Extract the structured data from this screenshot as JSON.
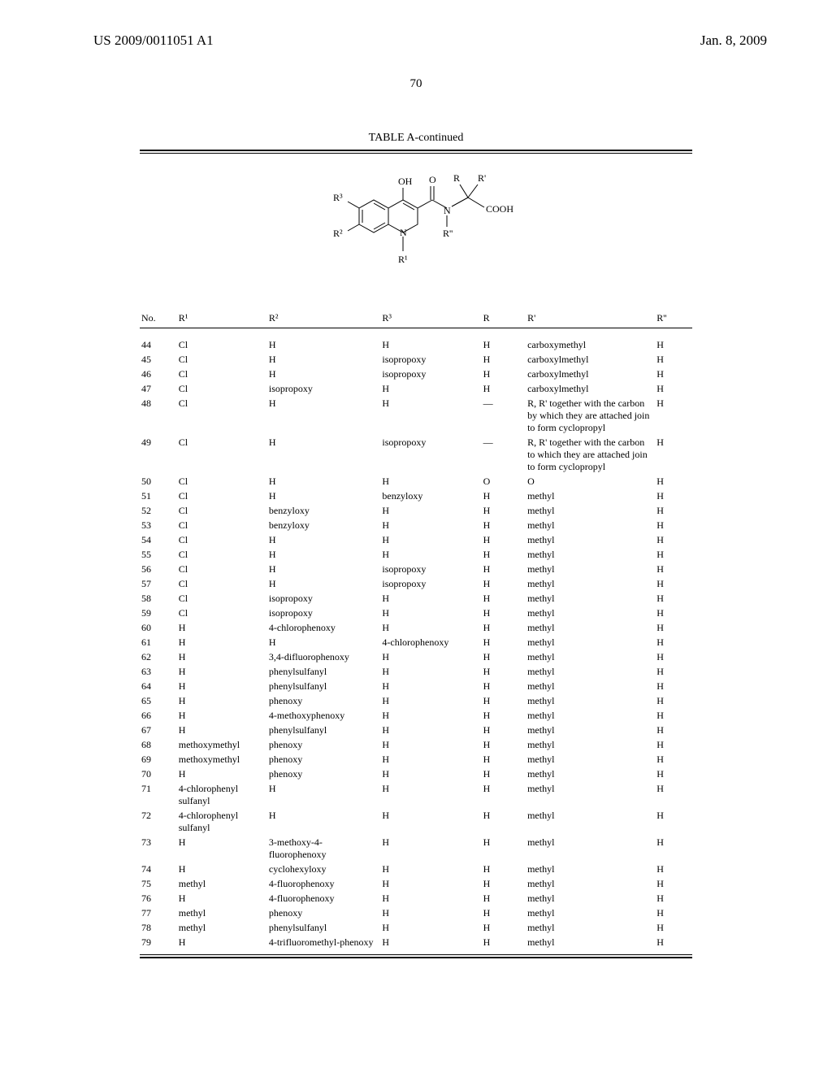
{
  "header": {
    "doc_id": "US 2009/0011051 A1",
    "date": "Jan. 8, 2009",
    "page_number": "70"
  },
  "table": {
    "title": "TABLE A-continued",
    "columns": {
      "no": "No.",
      "r1": "R¹",
      "r2": "R²",
      "r3": "R³",
      "r": "R",
      "rprime": "R'",
      "rpp": "R''"
    },
    "rows": [
      {
        "no": "44",
        "r1": "Cl",
        "r2": "H",
        "r3": "H",
        "r": "H",
        "rp": "carboxymethyl",
        "rpp": "H"
      },
      {
        "no": "45",
        "r1": "Cl",
        "r2": "H",
        "r3": "isopropoxy",
        "r": "H",
        "rp": "carboxylmethyl",
        "rpp": "H"
      },
      {
        "no": "46",
        "r1": "Cl",
        "r2": "H",
        "r3": "isopropoxy",
        "r": "H",
        "rp": "carboxylmethyl",
        "rpp": "H"
      },
      {
        "no": "47",
        "r1": "Cl",
        "r2": "isopropoxy",
        "r3": "H",
        "r": "H",
        "rp": "carboxylmethyl",
        "rpp": "H"
      },
      {
        "no": "48",
        "r1": "Cl",
        "r2": "H",
        "r3": "H",
        "r": "—",
        "rp": "R, R' together with the carbon by which they are attached join to form cyclopropyl",
        "rpp": "H"
      },
      {
        "no": "49",
        "r1": "Cl",
        "r2": "H",
        "r3": "isopropoxy",
        "r": "—",
        "rp": "R, R' together with the carbon to which they are attached join to form cyclopropyl",
        "rpp": "H"
      },
      {
        "no": "50",
        "r1": "Cl",
        "r2": "H",
        "r3": "H",
        "r": "O",
        "rp": "O",
        "rpp": "H"
      },
      {
        "no": "51",
        "r1": "Cl",
        "r2": "H",
        "r3": "benzyloxy",
        "r": "H",
        "rp": "methyl",
        "rpp": "H"
      },
      {
        "no": "52",
        "r1": "Cl",
        "r2": "benzyloxy",
        "r3": "H",
        "r": "H",
        "rp": "methyl",
        "rpp": "H"
      },
      {
        "no": "53",
        "r1": "Cl",
        "r2": "benzyloxy",
        "r3": "H",
        "r": "H",
        "rp": "methyl",
        "rpp": "H"
      },
      {
        "no": "54",
        "r1": "Cl",
        "r2": "H",
        "r3": "H",
        "r": "H",
        "rp": "methyl",
        "rpp": "H"
      },
      {
        "no": "55",
        "r1": "Cl",
        "r2": "H",
        "r3": "H",
        "r": "H",
        "rp": "methyl",
        "rpp": "H"
      },
      {
        "no": "56",
        "r1": "Cl",
        "r2": "H",
        "r3": "isopropoxy",
        "r": "H",
        "rp": "methyl",
        "rpp": "H"
      },
      {
        "no": "57",
        "r1": "Cl",
        "r2": "H",
        "r3": "isopropoxy",
        "r": "H",
        "rp": "methyl",
        "rpp": "H"
      },
      {
        "no": "58",
        "r1": "Cl",
        "r2": "isopropoxy",
        "r3": "H",
        "r": "H",
        "rp": "methyl",
        "rpp": "H"
      },
      {
        "no": "59",
        "r1": "Cl",
        "r2": "isopropoxy",
        "r3": "H",
        "r": "H",
        "rp": "methyl",
        "rpp": "H"
      },
      {
        "no": "60",
        "r1": "H",
        "r2": "4-chlorophenoxy",
        "r3": "H",
        "r": "H",
        "rp": "methyl",
        "rpp": "H"
      },
      {
        "no": "61",
        "r1": "H",
        "r2": "H",
        "r3": "4-chlorophenoxy",
        "r": "H",
        "rp": "methyl",
        "rpp": "H"
      },
      {
        "no": "62",
        "r1": "H",
        "r2": "3,4-difluorophenoxy",
        "r3": "H",
        "r": "H",
        "rp": "methyl",
        "rpp": "H"
      },
      {
        "no": "63",
        "r1": "H",
        "r2": "phenylsulfanyl",
        "r3": "H",
        "r": "H",
        "rp": "methyl",
        "rpp": "H"
      },
      {
        "no": "64",
        "r1": "H",
        "r2": "phenylsulfanyl",
        "r3": "H",
        "r": "H",
        "rp": "methyl",
        "rpp": "H"
      },
      {
        "no": "65",
        "r1": "H",
        "r2": "phenoxy",
        "r3": "H",
        "r": "H",
        "rp": "methyl",
        "rpp": "H"
      },
      {
        "no": "66",
        "r1": "H",
        "r2": "4-methoxyphenoxy",
        "r3": "H",
        "r": "H",
        "rp": "methyl",
        "rpp": "H"
      },
      {
        "no": "67",
        "r1": "H",
        "r2": "phenylsulfanyl",
        "r3": "H",
        "r": "H",
        "rp": "methyl",
        "rpp": "H"
      },
      {
        "no": "68",
        "r1": "methoxymethyl",
        "r2": "phenoxy",
        "r3": "H",
        "r": "H",
        "rp": "methyl",
        "rpp": "H"
      },
      {
        "no": "69",
        "r1": "methoxymethyl",
        "r2": "phenoxy",
        "r3": "H",
        "r": "H",
        "rp": "methyl",
        "rpp": "H"
      },
      {
        "no": "70",
        "r1": "H",
        "r2": "phenoxy",
        "r3": "H",
        "r": "H",
        "rp": "methyl",
        "rpp": "H"
      },
      {
        "no": "71",
        "r1": "4-chlorophenyl sulfanyl",
        "r2": "H",
        "r3": "H",
        "r": "H",
        "rp": "methyl",
        "rpp": "H"
      },
      {
        "no": "72",
        "r1": "4-chlorophenyl sulfanyl",
        "r2": "H",
        "r3": "H",
        "r": "H",
        "rp": "methyl",
        "rpp": "H"
      },
      {
        "no": "73",
        "r1": "H",
        "r2": "3-methoxy-4-fluorophenoxy",
        "r3": "H",
        "r": "H",
        "rp": "methyl",
        "rpp": "H"
      },
      {
        "no": "74",
        "r1": "H",
        "r2": "cyclohexyloxy",
        "r3": "H",
        "r": "H",
        "rp": "methyl",
        "rpp": "H"
      },
      {
        "no": "75",
        "r1": "methyl",
        "r2": "4-fluorophenoxy",
        "r3": "H",
        "r": "H",
        "rp": "methyl",
        "rpp": "H"
      },
      {
        "no": "76",
        "r1": "H",
        "r2": "4-fluorophenoxy",
        "r3": "H",
        "r": "H",
        "rp": "methyl",
        "rpp": "H"
      },
      {
        "no": "77",
        "r1": "methyl",
        "r2": "phenoxy",
        "r3": "H",
        "r": "H",
        "rp": "methyl",
        "rpp": "H"
      },
      {
        "no": "78",
        "r1": "methyl",
        "r2": "phenylsulfanyl",
        "r3": "H",
        "r": "H",
        "rp": "methyl",
        "rpp": "H"
      },
      {
        "no": "79",
        "r1": "H",
        "r2": "4-trifluoromethyl-phenoxy",
        "r3": "H",
        "r": "H",
        "rp": "methyl",
        "rpp": "H"
      }
    ]
  },
  "structure_labels": {
    "OH": "OH",
    "O": "O",
    "R": "R",
    "Rp": "R'",
    "COOH": "COOH",
    "N1": "N",
    "N2": "N",
    "Rpp": "R''",
    "R3": "R³",
    "R2": "R²",
    "R1": "R¹"
  }
}
